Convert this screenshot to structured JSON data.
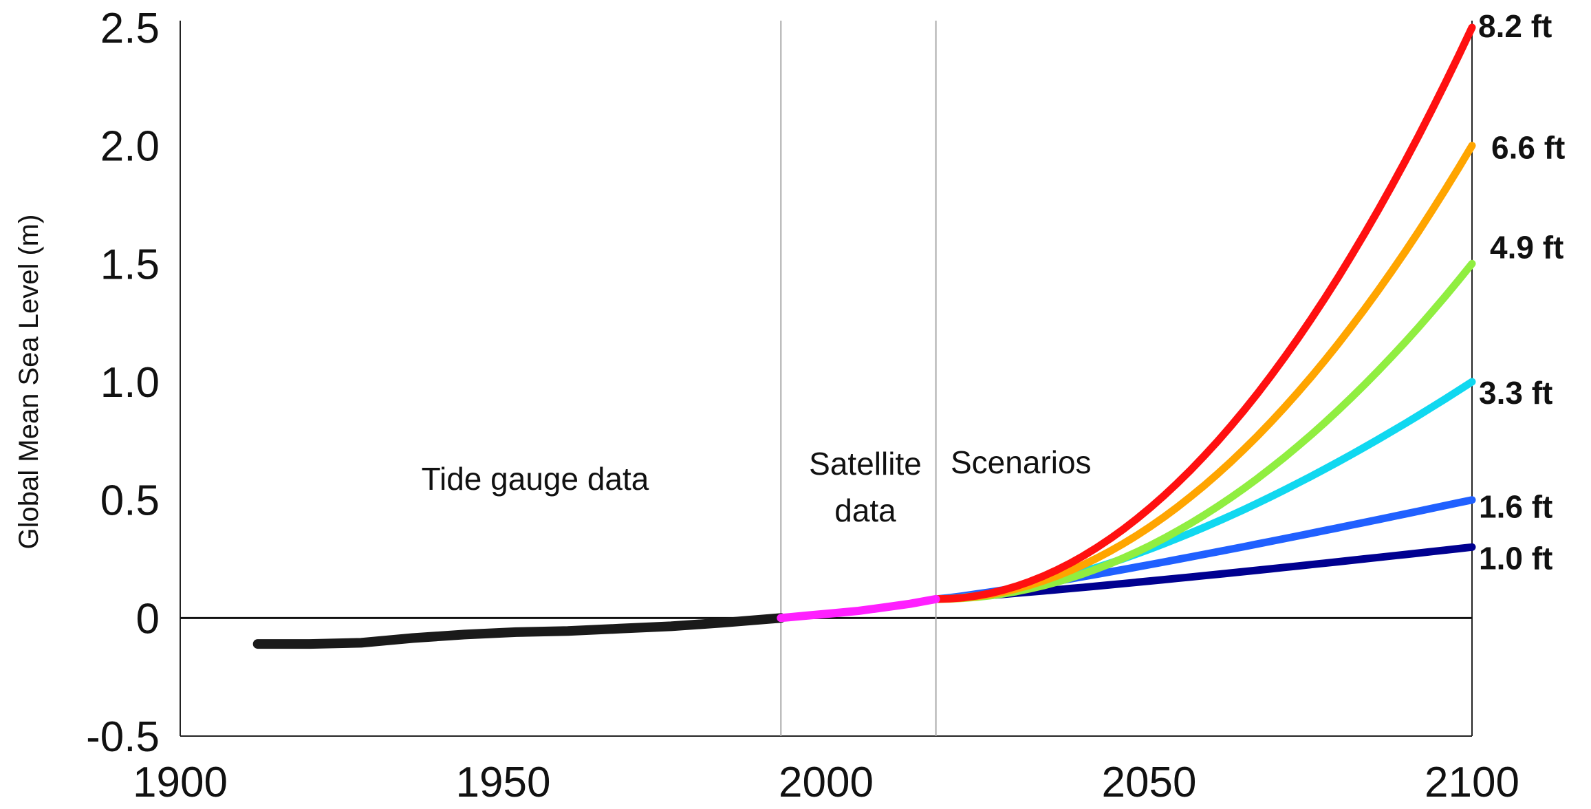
{
  "chart_data": {
    "type": "line",
    "title": "",
    "xlabel": "",
    "ylabel": "Global Mean Sea Level (m)",
    "xlim": [
      1900,
      2100
    ],
    "ylim": [
      -0.5,
      2.5
    ],
    "x_ticks": [
      "1900",
      "1950",
      "2000",
      "2050",
      "2100"
    ],
    "y_ticks": [
      {
        "value": 2.5,
        "label": "2.5"
      },
      {
        "value": 2.0,
        "label": "2.0"
      },
      {
        "value": 1.5,
        "label": "1.5"
      },
      {
        "value": 1.0,
        "label": "1.0"
      },
      {
        "value": 0.5,
        "label": "0.5"
      },
      {
        "value": 0,
        "label": "0"
      },
      {
        "value": -0.5,
        "label": "-0.5"
      }
    ],
    "grid": false,
    "baseline_y": 0,
    "period_dividers": [
      1993,
      2017
    ],
    "annotations": {
      "tide_gauge": "Tide gauge data",
      "satellite": [
        "Satellite",
        "data"
      ],
      "scenarios": "Scenarios"
    },
    "tide_gauge_series": {
      "color": "#1a1a1a",
      "x": [
        1912,
        1920,
        1928,
        1936,
        1944,
        1952,
        1960,
        1968,
        1976,
        1984,
        1993
      ],
      "y": [
        -0.11,
        -0.11,
        -0.105,
        -0.085,
        -0.07,
        -0.06,
        -0.055,
        -0.045,
        -0.035,
        -0.02,
        0.0
      ]
    },
    "satellite_series": {
      "color": "#ff20ff",
      "x": [
        1993,
        1997,
        2001,
        2005,
        2009,
        2013,
        2017
      ],
      "y": [
        0.0,
        0.01,
        0.02,
        0.03,
        0.045,
        0.06,
        0.08
      ]
    },
    "scenario_start": {
      "x": 2017,
      "y": 0.08
    },
    "scenarios": [
      {
        "label": "8.2 ft",
        "end_value": 2.5,
        "color": "#ff1010"
      },
      {
        "label": "6.6 ft",
        "end_value": 2.0,
        "color": "#ffa500"
      },
      {
        "label": "4.9 ft",
        "end_value": 1.5,
        "color": "#90ee40"
      },
      {
        "label": "3.3 ft",
        "end_value": 1.0,
        "color": "#10d8f0"
      },
      {
        "label": "1.6 ft",
        "end_value": 0.5,
        "color": "#2060ff"
      },
      {
        "label": "1.0 ft",
        "end_value": 0.3,
        "color": "#000090"
      }
    ]
  }
}
